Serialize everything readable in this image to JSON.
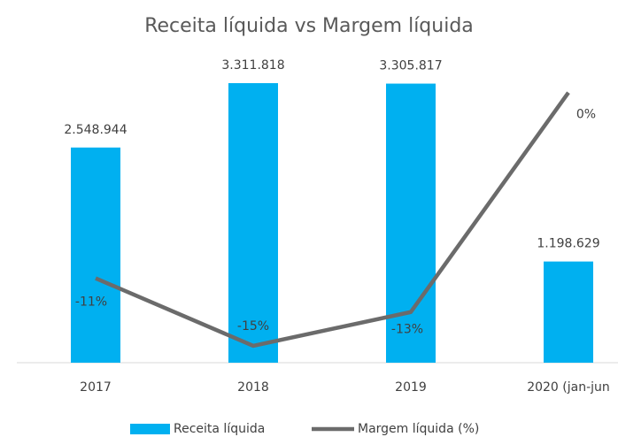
{
  "chart_data": {
    "type": "bar-line",
    "title": "Receita líquida vs Margem líquida",
    "categories": [
      "2017",
      "2018",
      "2019",
      "2020 (jan-jun"
    ],
    "series": [
      {
        "name": "Receita líquida",
        "type": "bar",
        "color": "#00b0f0",
        "values": [
          2548944,
          3311818,
          3305817,
          1198629
        ],
        "value_labels": [
          "2.548.944",
          "3.311.818",
          "3.305.817",
          "1.198.629"
        ]
      },
      {
        "name": "Margem líquida (%)",
        "type": "line",
        "axis": "y2",
        "color": "#6b6b6b",
        "values": [
          -11,
          -15,
          -13,
          0
        ],
        "value_labels": [
          "-11%",
          "-15%",
          "-13%",
          "0%"
        ]
      }
    ],
    "ylim": [
      0,
      3500000
    ],
    "y2lim": [
      -16,
      1.5
    ],
    "legend": "bottom"
  }
}
